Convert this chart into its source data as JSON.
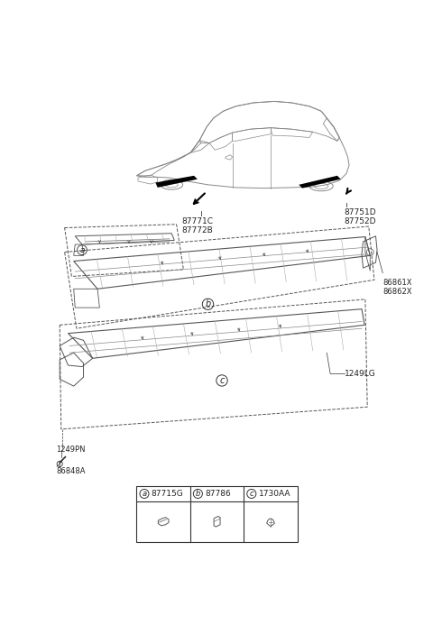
{
  "bg_color": "#ffffff",
  "car_label_left": "87771C\n87772B",
  "car_label_right": "87751D\n87752D",
  "part_86861X": "86861X\n86862X",
  "part_1249LG": "1249LG",
  "part_1249PN": "1249PN",
  "part_86848A": "86848A",
  "text_color": "#222222",
  "line_color": "#333333",
  "legend_headers": [
    [
      "a",
      "87715G"
    ],
    [
      "b",
      "87786"
    ],
    [
      "c",
      "1730AA"
    ]
  ]
}
